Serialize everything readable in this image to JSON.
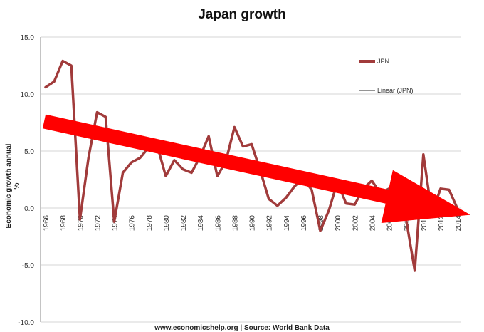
{
  "chart_data": {
    "type": "line",
    "title": "Japan growth",
    "ylabel": "Economic growth annual %",
    "source": "www.economicshelp.org | Source: World Bank Data",
    "ylim": [
      -10,
      15
    ],
    "yticks": [
      15,
      10,
      5,
      0,
      -5,
      -10
    ],
    "ytick_labels": [
      "15.0",
      "10.0",
      "5.0",
      "0.0",
      "-5.0",
      "-10.0"
    ],
    "xtick_labels": [
      "1966",
      "1968",
      "1970",
      "1972",
      "1974",
      "1976",
      "1978",
      "1980",
      "1982",
      "1984",
      "1986",
      "1988",
      "1990",
      "1992",
      "1994",
      "1996",
      "1998",
      "2000",
      "2002",
      "2004",
      "2006",
      "2008",
      "2010",
      "2012",
      "2014"
    ],
    "x": [
      1966,
      1967,
      1968,
      1969,
      1970,
      1971,
      1972,
      1973,
      1974,
      1975,
      1976,
      1977,
      1978,
      1979,
      1980,
      1981,
      1982,
      1983,
      1984,
      1985,
      1986,
      1987,
      1988,
      1989,
      1990,
      1991,
      1992,
      1993,
      1994,
      1995,
      1996,
      1997,
      1998,
      1999,
      2000,
      2001,
      2002,
      2003,
      2004,
      2005,
      2006,
      2007,
      2008,
      2009,
      2010,
      2011,
      2012,
      2013,
      2014
    ],
    "series": [
      {
        "name": "JPN",
        "color": "#a13b3b",
        "values": [
          10.6,
          11.1,
          12.9,
          12.5,
          -1.0,
          4.4,
          8.4,
          8.0,
          -1.2,
          3.1,
          4.0,
          4.4,
          5.3,
          5.5,
          2.8,
          4.2,
          3.4,
          3.1,
          4.5,
          6.3,
          2.8,
          4.1,
          7.1,
          5.4,
          5.6,
          3.3,
          0.8,
          0.2,
          0.9,
          1.9,
          2.6,
          1.6,
          -2.0,
          -0.2,
          2.3,
          0.4,
          0.3,
          1.7,
          2.4,
          1.3,
          1.7,
          2.2,
          -1.0,
          -5.5,
          4.7,
          -0.5,
          1.7,
          1.6,
          -0.1
        ]
      }
    ],
    "legend": {
      "position": "top-right",
      "entries": [
        {
          "label": "JPN",
          "color": "#a13b3b"
        },
        {
          "label": "Linear (JPN)",
          "color": "#555555"
        }
      ]
    },
    "grid": "horizontal",
    "annotation": {
      "type": "arrow",
      "color": "#ff0000",
      "from": [
        1966,
        7.6
      ],
      "to": [
        2014.5,
        -0.6
      ]
    }
  }
}
